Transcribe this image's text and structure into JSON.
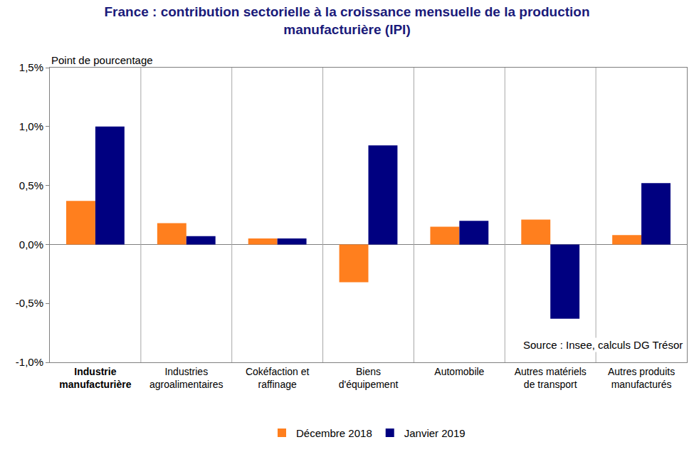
{
  "chart_data": {
    "type": "bar",
    "title": "France : contribution sectorielle à la croissance mensuelle de la production manufacturière (IPI)",
    "ylabel": "Point de pourcentage",
    "source": "Source : Insee, calculs DG Trésor",
    "categories": [
      "Industrie manufacturière",
      "Industries agroalimentaires",
      "Cokéfaction et raffinage",
      "Biens d'équipement",
      "Automobile",
      "Autres matériels de transport",
      "Autres produits manufacturés"
    ],
    "series": [
      {
        "name": "Décembre 2018",
        "color": "#ff7f1e",
        "values": [
          0.37,
          0.18,
          0.05,
          -0.32,
          0.15,
          0.21,
          0.08
        ]
      },
      {
        "name": "Janvier 2019",
        "color": "#000080",
        "values": [
          1.0,
          0.07,
          0.05,
          0.84,
          0.2,
          -0.63,
          0.52
        ]
      }
    ],
    "ylim": [
      -1.0,
      1.5
    ],
    "yticks": [
      {
        "value": -1.0,
        "label": "-1,0%"
      },
      {
        "value": -0.5,
        "label": "-0,5%"
      },
      {
        "value": 0,
        "label": "0,0%"
      },
      {
        "value": 0.5,
        "label": "0,5%"
      },
      {
        "value": 1.0,
        "label": "1,0%"
      },
      {
        "value": 1.5,
        "label": "1,5%"
      }
    ],
    "grid": "x",
    "legend": "bottom"
  }
}
